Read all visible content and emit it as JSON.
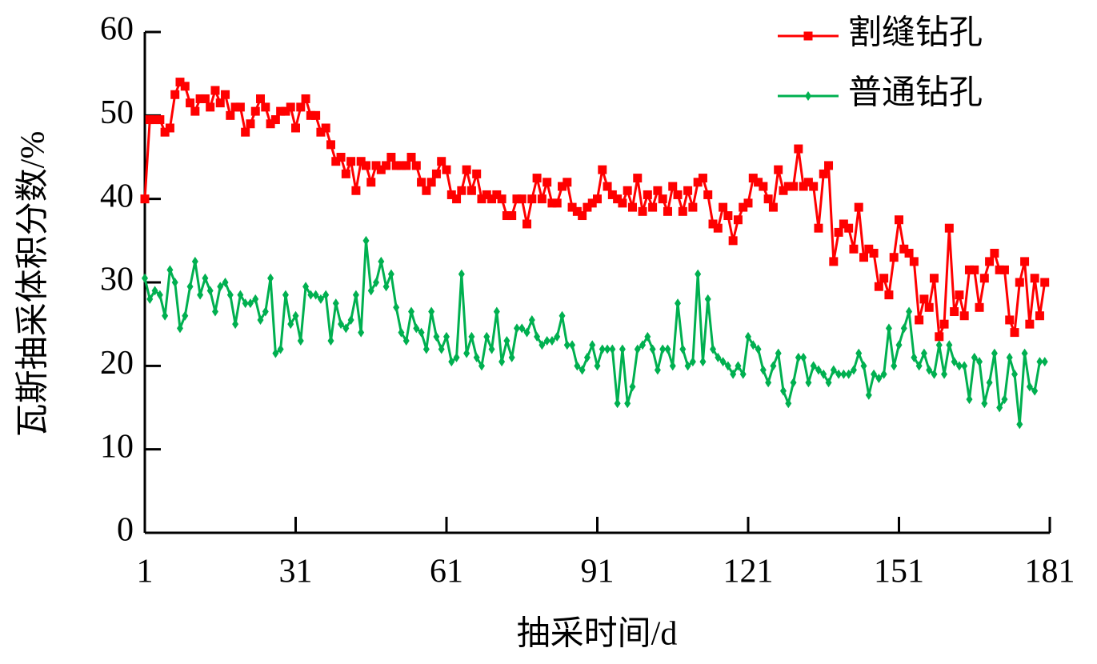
{
  "chart_data": {
    "type": "line",
    "xlabel": "抽采时间/d",
    "ylabel": "瓦斯抽采体积分数/%",
    "x": [
      1,
      2,
      3,
      4,
      5,
      6,
      7,
      8,
      9,
      10,
      11,
      12,
      13,
      14,
      15,
      16,
      17,
      18,
      19,
      20,
      21,
      22,
      23,
      24,
      25,
      26,
      27,
      28,
      29,
      30,
      31,
      32,
      33,
      34,
      35,
      36,
      37,
      38,
      39,
      40,
      41,
      42,
      43,
      44,
      45,
      46,
      47,
      48,
      49,
      50,
      51,
      52,
      53,
      54,
      55,
      56,
      57,
      58,
      59,
      60,
      61,
      62,
      63,
      64,
      65,
      66,
      67,
      68,
      69,
      70,
      71,
      72,
      73,
      74,
      75,
      76,
      77,
      78,
      79,
      80,
      81,
      82,
      83,
      84,
      85,
      86,
      87,
      88,
      89,
      90,
      91,
      92,
      93,
      94,
      95,
      96,
      97,
      98,
      99,
      100,
      101,
      102,
      103,
      104,
      105,
      106,
      107,
      108,
      109,
      110,
      111,
      112,
      113,
      114,
      115,
      116,
      117,
      118,
      119,
      120,
      121,
      122,
      123,
      124,
      125,
      126,
      127,
      128,
      129,
      130,
      131,
      132,
      133,
      134,
      135,
      136,
      137,
      138,
      139,
      140,
      141,
      142,
      143,
      144,
      145,
      146,
      147,
      148,
      149,
      150,
      151,
      152,
      153,
      154,
      155,
      156,
      157,
      158,
      159,
      160,
      161,
      162,
      163,
      164,
      165,
      166,
      167,
      168,
      169,
      170,
      171,
      172,
      173,
      174,
      175,
      176,
      177,
      178,
      179,
      180
    ],
    "series": [
      {
        "name": "割缝钻孔",
        "color": "#ff0000",
        "marker": "square",
        "values": [
          40,
          49.5,
          49.5,
          49.5,
          48,
          48.5,
          52.5,
          54,
          53.5,
          51.5,
          50.5,
          52,
          52,
          51,
          53,
          51.5,
          52.5,
          50,
          51,
          51,
          48,
          49,
          50.5,
          52,
          51,
          49,
          49.5,
          50.5,
          50.5,
          51,
          48.5,
          51,
          52,
          50,
          50,
          48,
          48.5,
          46.5,
          44.5,
          45,
          43,
          44.5,
          41,
          44.5,
          44,
          42,
          44,
          43.5,
          44,
          45,
          44,
          44,
          44,
          45,
          44,
          42,
          41,
          42,
          43,
          44.5,
          43.5,
          40.5,
          40,
          41,
          43.5,
          41,
          43,
          40,
          40.5,
          40,
          40.5,
          40,
          38,
          38,
          40,
          40,
          37,
          40,
          42.5,
          40,
          42,
          39.5,
          39.5,
          41.5,
          42,
          39,
          38.5,
          38,
          39,
          39.5,
          40,
          43.5,
          41.5,
          40.5,
          40,
          39.5,
          41,
          39,
          42.5,
          38.5,
          40.5,
          39,
          41,
          40,
          38.5,
          41.5,
          40.5,
          38.5,
          41,
          39,
          42,
          42.5,
          40.5,
          37,
          36.5,
          39,
          38,
          35,
          37.5,
          39,
          39.5,
          42.5,
          42,
          41.5,
          40,
          39,
          43.5,
          41,
          41.5,
          41.5,
          46,
          41.5,
          42,
          41.5,
          36.5,
          43,
          44,
          32.5,
          36,
          37,
          36.5,
          34,
          39,
          33,
          34,
          33.5,
          29.5,
          30.5,
          28.5,
          33,
          37.5,
          34,
          33.5,
          32.5,
          25.5,
          28,
          27,
          30.5,
          23.5,
          25,
          36.5,
          26.5,
          28.5,
          26,
          31.5,
          31.5,
          27,
          30.5,
          32.5,
          33.5,
          31.5,
          31.5,
          25.5,
          24,
          30,
          32.5,
          25,
          30.5,
          26,
          30
        ]
      },
      {
        "name": "普通钻孔",
        "color": "#00b050",
        "marker": "diamond",
        "values": [
          30.5,
          28,
          29,
          28.5,
          26,
          31.5,
          30,
          24.5,
          26,
          29.5,
          32.5,
          28.5,
          30.5,
          29,
          26.5,
          29.5,
          30,
          28.5,
          25,
          28.5,
          27.5,
          27.5,
          28,
          25.5,
          26.5,
          30.5,
          21.5,
          22,
          28.5,
          25,
          26,
          23,
          29.5,
          28.5,
          28.5,
          28,
          28.5,
          23,
          27.5,
          25,
          24.5,
          25.5,
          28.5,
          24,
          35,
          29,
          30,
          32.5,
          29.5,
          31,
          27,
          24,
          23,
          26.5,
          24.5,
          24,
          22,
          26.5,
          23.5,
          22,
          23.5,
          20.5,
          21,
          31,
          21.5,
          23.5,
          21,
          20,
          23.5,
          22,
          26.5,
          20.5,
          23,
          21,
          24.5,
          24.5,
          24,
          25.5,
          23.5,
          22.5,
          23,
          23,
          23.5,
          26,
          22.5,
          22.5,
          20,
          19.5,
          21,
          22.5,
          20,
          22,
          22,
          22,
          15.5,
          22,
          15.5,
          17.5,
          22,
          22.5,
          23.5,
          22,
          19.5,
          22,
          22,
          20,
          27.5,
          22,
          20,
          20.5,
          31,
          20.5,
          28,
          22,
          21,
          20.5,
          20,
          19,
          20,
          19,
          23.5,
          22.5,
          22,
          19.5,
          18,
          20,
          21.5,
          17,
          15.5,
          18,
          21,
          21,
          18,
          20,
          19.5,
          19,
          18,
          19.5,
          19,
          19,
          19,
          19.5,
          21.5,
          20,
          16.5,
          19,
          18.5,
          19,
          24.5,
          20,
          22.5,
          24.5,
          26.5,
          21,
          20,
          21.5,
          19.5,
          19,
          22.5,
          19,
          22.5,
          20.5,
          20,
          20,
          16,
          21,
          20.5,
          15.5,
          18,
          21.5,
          15,
          16,
          21,
          19,
          13,
          21.5,
          17.5,
          17,
          20.5,
          20.5
        ]
      }
    ],
    "xlim": [
      1,
      181
    ],
    "xticks": [
      1,
      31,
      61,
      91,
      121,
      151,
      181
    ],
    "ylim": [
      0,
      60
    ],
    "yticks": [
      0,
      10,
      20,
      30,
      40,
      50,
      60
    ],
    "legend": "upper right"
  }
}
